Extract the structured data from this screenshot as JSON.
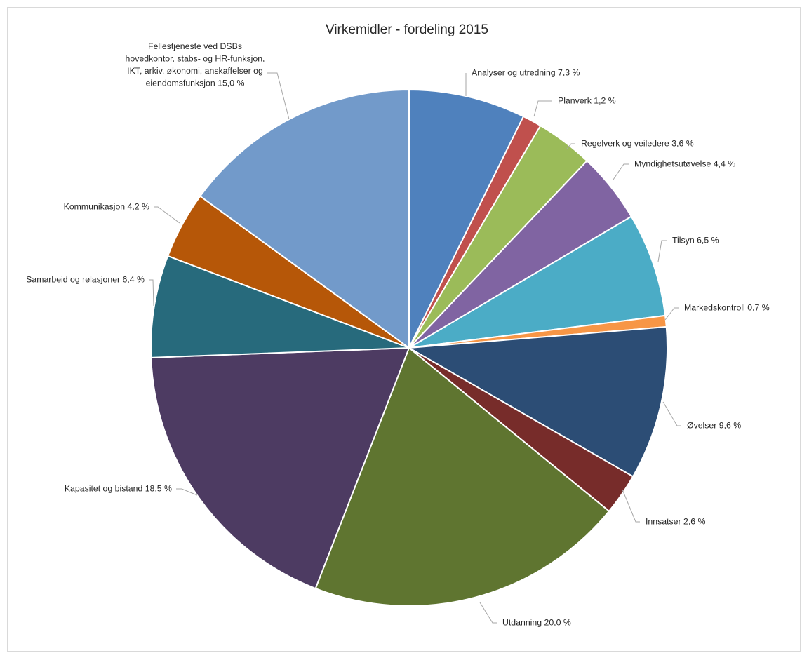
{
  "chart_data": {
    "type": "pie",
    "title": "Virkemidler - fordeling 2015",
    "slices": [
      {
        "name": "Analyser og utredning",
        "value": 7.3,
        "label": "Analyser og utredning 7,3 %",
        "color": "#4f81bd"
      },
      {
        "name": "Planverk",
        "value": 1.2,
        "label": "Planverk 1,2 %",
        "color": "#c0504d"
      },
      {
        "name": "Regelverk og veiledere",
        "value": 3.6,
        "label": "Regelverk og veiledere 3,6 %",
        "color": "#9bbb59"
      },
      {
        "name": "Myndighetsutøvelse",
        "value": 4.4,
        "label": "Myndighetsutøvelse 4,4 %",
        "color": "#8064a2"
      },
      {
        "name": "Tilsyn",
        "value": 6.5,
        "label": "Tilsyn 6,5 %",
        "color": "#4bacc6"
      },
      {
        "name": "Markedskontroll",
        "value": 0.7,
        "label": "Markedskontroll 0,7 %",
        "color": "#f79646"
      },
      {
        "name": "Øvelser",
        "value": 9.6,
        "label": "Øvelser 9,6 %",
        "color": "#2c4d75"
      },
      {
        "name": "Innsatser",
        "value": 2.6,
        "label": "Innsatser 2,6 %",
        "color": "#772c2a"
      },
      {
        "name": "Utdanning",
        "value": 20.0,
        "label": "Utdanning 20,0 %",
        "color": "#5f7530"
      },
      {
        "name": "Kapasitet og bistand",
        "value": 18.5,
        "label": "Kapasitet og bistand 18,5 %",
        "color": "#4d3b62"
      },
      {
        "name": "Samarbeid og relasjoner",
        "value": 6.4,
        "label": "Samarbeid og relasjoner 6,4 %",
        "color": "#276a7c"
      },
      {
        "name": "Kommunikasjon",
        "value": 4.2,
        "label": "Kommunikasjon 4,2 %",
        "color": "#b65708"
      },
      {
        "name": "Fellestjeneste ved DSBs hovedkontor, stabs- og HR-funksjon, IKT, arkiv, økonomi, anskaffelser og eiendomsfunksjon",
        "value": 15.0,
        "label_lines": [
          "Fellestjeneste ved DSBs",
          "hovedkontor, stabs- og HR-funksjon,",
          "IKT, arkiv, økonomi, anskaffelser og",
          "eiendomsfunksjon  15,0 %"
        ],
        "color": "#729aca"
      }
    ]
  }
}
